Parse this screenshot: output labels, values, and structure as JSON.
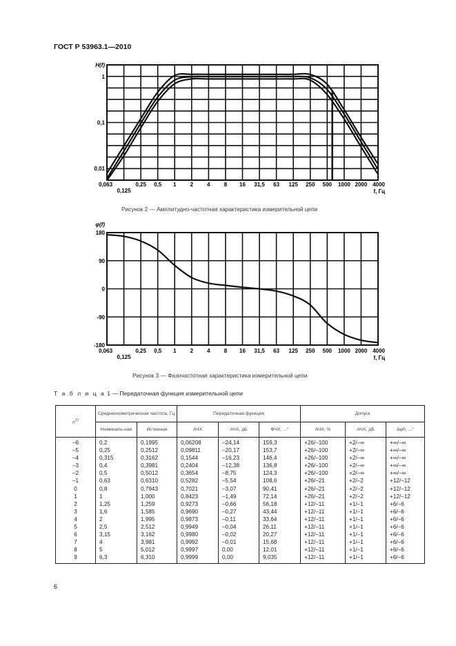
{
  "header": {
    "title": "ГОСТ Р 53963.1—2010"
  },
  "chart_data": [
    {
      "type": "line",
      "title": "",
      "ylabel": "H(f)",
      "xlabel": "f, Гц",
      "yscale": "log",
      "xscale": "log",
      "ylim": [
        0.0056,
        1.8
      ],
      "grid": true,
      "x_ticks": [
        "0,063",
        "0,125",
        "0,25",
        "0,5",
        "1",
        "2",
        "4",
        "8",
        "16",
        "31,5",
        "63",
        "125",
        "250",
        "500",
        "1000",
        "2000",
        "4000"
      ],
      "y_ticks": [
        {
          "value": 1,
          "label": "1"
        },
        {
          "value": 0.1,
          "label": "0,1"
        },
        {
          "value": 0.01,
          "label": "0,01"
        }
      ],
      "x": [
        0.063,
        0.125,
        0.25,
        0.5,
        1,
        2,
        4,
        8,
        16,
        31.5,
        63,
        125,
        250,
        500,
        1000,
        2000,
        4000
      ],
      "series": [
        {
          "values": [
            0.008,
            0.031,
            0.122,
            0.46,
            1.06,
            1.12,
            1.12,
            1.12,
            1.12,
            1.12,
            1.12,
            1.12,
            1.12,
            0.7,
            0.2,
            0.05,
            0.013
          ]
        },
        {
          "values": [
            0.0062,
            0.024,
            0.097,
            0.36,
            0.84,
            0.99,
            1.0,
            1.0,
            1.0,
            1.0,
            1.0,
            1.0,
            0.95,
            0.54,
            0.16,
            0.04,
            0.01
          ]
        },
        {
          "values": [
            0.005,
            0.019,
            0.077,
            0.29,
            0.7,
            0.89,
            0.89,
            0.89,
            0.89,
            0.89,
            0.89,
            0.89,
            0.85,
            0.42,
            0.125,
            0.031,
            0.0078
          ]
        }
      ],
      "vertical_markers": [
        630
      ],
      "caption": "Рисунок 2 — Амплитудно-частотная характеристика измерительной цепи"
    },
    {
      "type": "line",
      "title": "",
      "ylabel": "φ(f)",
      "xlabel": "f, Гц",
      "xscale": "log",
      "ylim": [
        -180,
        180
      ],
      "grid": true,
      "x_ticks": [
        "0,063",
        "0,125",
        "0,25",
        "0,5",
        "1",
        "2",
        "4",
        "8",
        "16",
        "31,5",
        "63",
        "125",
        "250",
        "500",
        "1000",
        "2000",
        "4000"
      ],
      "y_ticks": [
        {
          "value": 180,
          "label": "180"
        },
        {
          "value": 90,
          "label": "90"
        },
        {
          "value": 0,
          "label": "0"
        },
        {
          "value": -90,
          "label": "-90"
        },
        {
          "value": -180,
          "label": "-180"
        }
      ],
      "x": [
        0.063,
        0.125,
        0.25,
        0.5,
        1,
        2,
        4,
        8,
        16,
        31.5,
        63,
        125,
        250,
        500,
        1000,
        2000,
        4000
      ],
      "series": [
        {
          "values": [
            173,
            168,
            153,
            124,
            75,
            36,
            18,
            11,
            5,
            0,
            -7,
            -22,
            -50,
            -109,
            -145,
            -164,
            -172
          ]
        }
      ],
      "caption": "Рисунок 3 — Фазочастотная характеристика измерительной цепи"
    }
  ],
  "table": {
    "label": "Т а б л и ц а",
    "number_title": "1 — Передаточная функция измерительной цепи",
    "headers": {
      "n": "n",
      "n_sup": "1)",
      "freq_group": "Среднегеометрическая частота, Гц",
      "transfer_group": "Передаточная функция",
      "tolerance_group": "Допуск",
      "nominal": "Номиналь-ная",
      "true": "Истинная",
      "afc": "АЧХ",
      "afc_db": "АЧХ, дБ",
      "pfc": "ФЧХ, ...°",
      "tol_afc_pct": "АЧХ, %",
      "tol_afc_db": "АЧХ, дБ",
      "tol_phase": "Δφ0, ...°"
    },
    "rows": [
      [
        "–6",
        "0,2",
        "0,1995",
        "0,06208",
        "–24,14",
        "159,3",
        "+26/–100",
        "+2/–∞",
        "+∞/–∞"
      ],
      [
        "–5",
        "0,25",
        "0,2512",
        "0,09811",
        "–20,17",
        "153,7",
        "+26/–100",
        "+2/–∞",
        "+∞/–∞"
      ],
      [
        "–4",
        "0,315",
        "0,3162",
        "0,1544",
        "–16,23",
        "146,4",
        "+26/–100",
        "+2/–∞",
        "+∞/–∞"
      ],
      [
        "–3",
        "0,4",
        "0,3981",
        "0,2404",
        "–12,38",
        "136,8",
        "+26/–100",
        "+2/–∞",
        "+∞/–∞"
      ],
      [
        "–2",
        "0,5",
        "0,5012",
        "0,3654",
        "–8,75",
        "124,3",
        "+26/–100",
        "+2/–∞",
        "+∞/–∞"
      ],
      [
        "–1",
        "0,63",
        "0,6310",
        "0,5282",
        "–5,54",
        "108,6",
        "+26/–21",
        "+2/–2",
        "+12/–12"
      ],
      [
        "0",
        "0,8",
        "0,7943",
        "0,7021",
        "–3,07",
        "90,41",
        "+26/–21",
        "+2/–2",
        "+12/–12"
      ],
      [
        "1",
        "1",
        "1,000",
        "0,8423",
        "–1,49",
        "72,14",
        "+26/–21",
        "+2/–2",
        "+12/–12"
      ],
      [
        "2",
        "1,25",
        "1,259",
        "0,9273",
        "–0,66",
        "56,18",
        "+12/–11",
        "+1/–1",
        "+6/–6"
      ],
      [
        "3",
        "1,6",
        "1,585",
        "0,9690",
        "–0,27",
        "43,44",
        "+12/–11",
        "+1/–1",
        "+6/–6"
      ],
      [
        "4",
        "2",
        "1,995",
        "0,9873",
        "–0,11",
        "33,64",
        "+12/–11",
        "+1/–1",
        "+6/–6"
      ],
      [
        "5",
        "2,5",
        "2,512",
        "0,9949",
        "–0,04",
        "26,11",
        "+12/–11",
        "+1/–1",
        "+6/–6"
      ],
      [
        "6",
        "3,15",
        "3,162",
        "0,9980",
        "–0,02",
        "20,27",
        "+12/–11",
        "+1/–1",
        "+6/–6"
      ],
      [
        "7",
        "4",
        "3,981",
        "0,9992",
        "–0,01",
        "15,68",
        "+12/–11",
        "+1/–1",
        "+6/–6"
      ],
      [
        "8",
        "5",
        "5,012",
        "0,9997",
        "0,00",
        "12,01",
        "+12/–11",
        "+1/–1",
        "+6/–6"
      ],
      [
        "9",
        "6,3",
        "6,310",
        "0,9999",
        "0,00",
        "9,035",
        "+12/–11",
        "+1/–1",
        "+6/–6"
      ]
    ]
  },
  "footer": {
    "page_number": "6"
  }
}
